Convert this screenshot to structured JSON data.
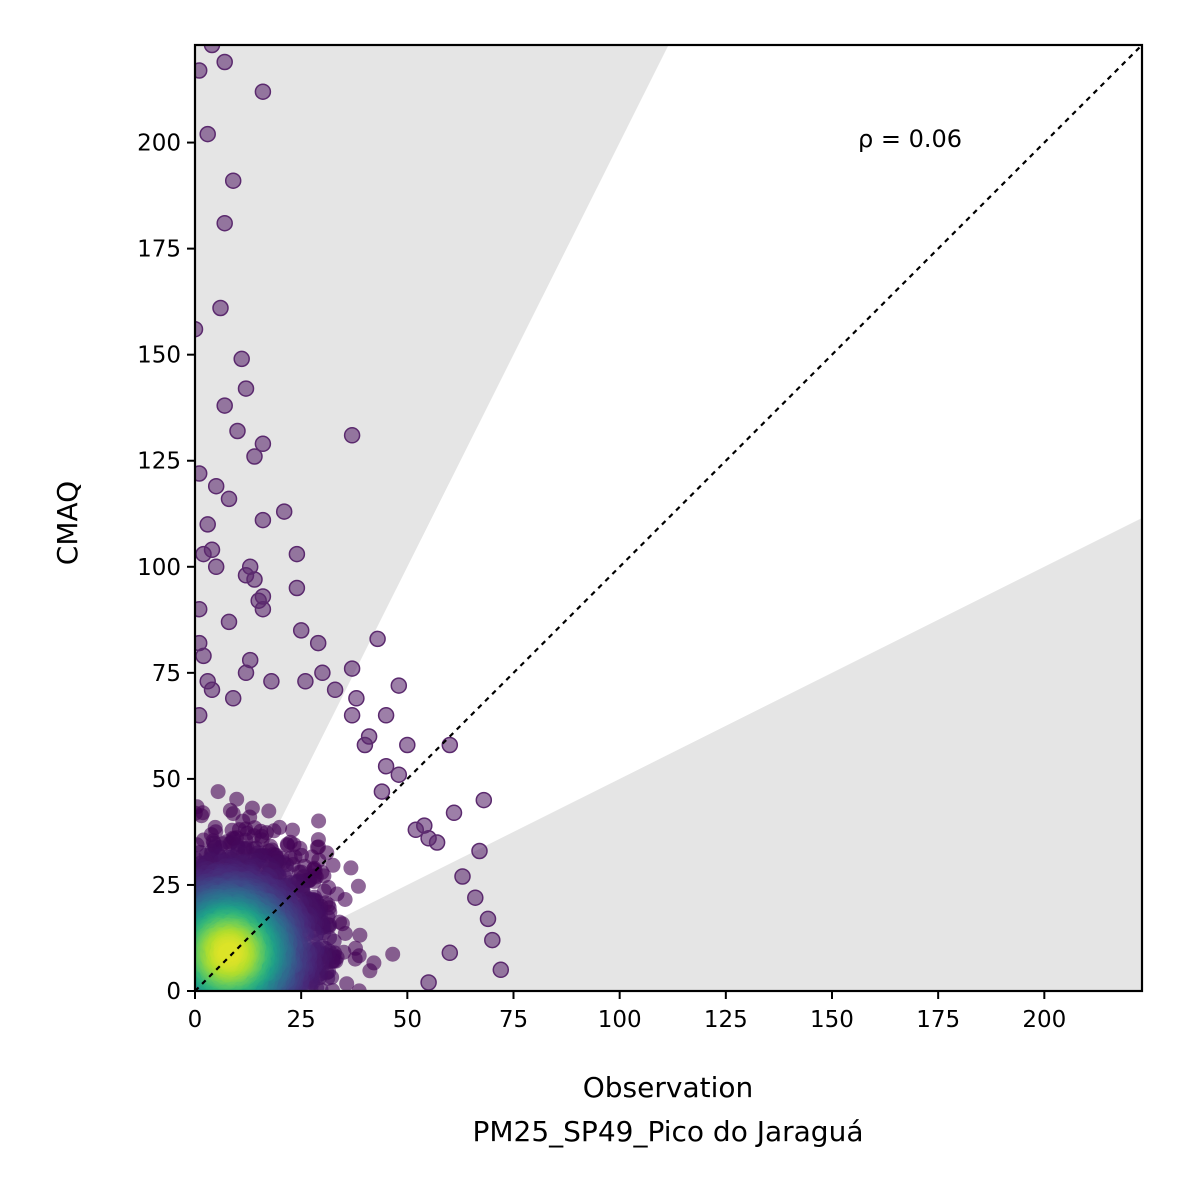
{
  "chart_data": {
    "type": "scatter",
    "xlabel": "Observation",
    "xlabel_sub": "PM25_SP49_Pico do Jaraguá",
    "ylabel": "CMAQ",
    "xlim": [
      0,
      223
    ],
    "ylim": [
      0,
      223
    ],
    "xticks": [
      "0",
      "25",
      "50",
      "75",
      "100",
      "125",
      "150",
      "175",
      "200"
    ],
    "yticks": [
      "0",
      "25",
      "50",
      "75",
      "100",
      "125",
      "150",
      "175",
      "200"
    ],
    "annotation": "ρ = 0.06",
    "reference_line": "y = x (dotted)",
    "shaded_region": "outside factor-of-2 band (y > 2x and y < 0.5x)",
    "colormap": "viridis (point density)",
    "colors": {
      "shade": "#e5e5e5",
      "outlier_point": "#5b2a6e",
      "dense_point": "#fde725"
    },
    "outlier_points": [
      [
        4,
        223
      ],
      [
        1,
        217
      ],
      [
        7,
        219
      ],
      [
        16,
        212
      ],
      [
        3,
        202
      ],
      [
        9,
        191
      ],
      [
        7,
        181
      ],
      [
        6,
        161
      ],
      [
        0,
        156
      ],
      [
        11,
        149
      ],
      [
        12,
        142
      ],
      [
        7,
        138
      ],
      [
        10,
        132
      ],
      [
        37,
        131
      ],
      [
        16,
        129
      ],
      [
        14,
        126
      ],
      [
        1,
        122
      ],
      [
        5,
        119
      ],
      [
        8,
        116
      ],
      [
        21,
        113
      ],
      [
        16,
        111
      ],
      [
        3,
        110
      ],
      [
        4,
        104
      ],
      [
        2,
        103
      ],
      [
        24,
        103
      ],
      [
        5,
        100
      ],
      [
        13,
        100
      ],
      [
        12,
        98
      ],
      [
        14,
        97
      ],
      [
        16,
        93
      ],
      [
        24,
        95
      ],
      [
        15,
        92
      ],
      [
        16,
        90
      ],
      [
        1,
        90
      ],
      [
        8,
        87
      ],
      [
        25,
        85
      ],
      [
        29,
        82
      ],
      [
        43,
        83
      ],
      [
        1,
        82
      ],
      [
        2,
        79
      ],
      [
        13,
        78
      ],
      [
        12,
        75
      ],
      [
        37,
        76
      ],
      [
        30,
        75
      ],
      [
        48,
        72
      ],
      [
        18,
        73
      ],
      [
        26,
        73
      ],
      [
        33,
        71
      ],
      [
        38,
        69
      ],
      [
        45,
        65
      ],
      [
        37,
        65
      ],
      [
        60,
        58
      ],
      [
        50,
        58
      ],
      [
        41,
        60
      ],
      [
        40,
        58
      ],
      [
        44,
        47
      ],
      [
        45,
        53
      ],
      [
        48,
        51
      ],
      [
        61,
        42
      ],
      [
        68,
        45
      ],
      [
        54,
        39
      ],
      [
        52,
        38
      ],
      [
        55,
        36
      ],
      [
        57,
        35
      ],
      [
        67,
        33
      ],
      [
        66,
        22
      ],
      [
        63,
        27
      ],
      [
        69,
        17
      ],
      [
        70,
        12
      ],
      [
        72,
        5
      ],
      [
        60,
        9
      ],
      [
        55,
        2
      ],
      [
        4,
        71
      ],
      [
        3,
        73
      ],
      [
        1,
        65
      ],
      [
        9,
        69
      ]
    ]
  }
}
